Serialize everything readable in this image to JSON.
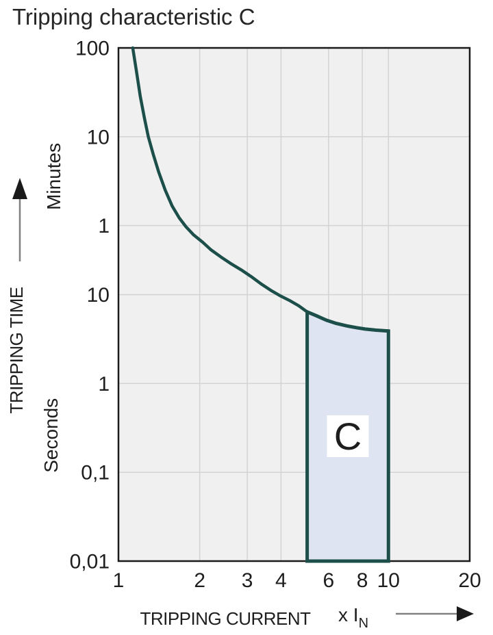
{
  "page": {
    "title": "Tripping characteristic C"
  },
  "colors": {
    "curve": "#1d4f4a",
    "region_fill": "#dfe4f3",
    "region_border": "#1d4f4a",
    "plot_background": "#f0f0f0",
    "grid": "#d3d3d3",
    "plot_border": "#1a1a1a",
    "text": "#1e1e1e",
    "arrow_line": "#808080",
    "arrow_head": "#1a1a1a",
    "label_box": "#ffffff"
  },
  "chart_data": {
    "type": "line",
    "title": "Tripping characteristic C",
    "grid": true,
    "x_axis": {
      "title": "TRIPPING CURRENT",
      "unit_label": "x I",
      "unit_subscript": "N",
      "scale": "log",
      "min": 1,
      "max": 20,
      "ticks": [
        {
          "label": "1",
          "v": 1,
          "grid": false
        },
        {
          "label": "2",
          "v": 2,
          "grid": true
        },
        {
          "label": "3",
          "v": 3,
          "grid": true
        },
        {
          "label": "4",
          "v": 4,
          "grid": true
        },
        {
          "label": "6",
          "v": 6,
          "grid": true
        },
        {
          "label": "8",
          "v": 8,
          "grid": true
        },
        {
          "label": "10",
          "v": 10,
          "grid": true
        },
        {
          "label": "20",
          "v": 20,
          "grid": false
        }
      ]
    },
    "y_axis": {
      "title": "TRIPPING TIME",
      "scale": "log",
      "min_seconds": 0.01,
      "max_seconds": 6000,
      "unit_labels": [
        {
          "label": "Minutes",
          "center_t": 214
        },
        {
          "label": "Seconds",
          "center_t": 0.26
        }
      ],
      "ticks": [
        {
          "label": "100",
          "t": 6000,
          "grid": false
        },
        {
          "label": "10",
          "t": 600,
          "grid": true
        },
        {
          "label": "1",
          "t": 60,
          "grid": true
        },
        {
          "label": "10",
          "t": 10,
          "grid": true
        },
        {
          "label": "1",
          "t": 1,
          "grid": true
        },
        {
          "label": "0,1",
          "t": 0.1,
          "grid": true
        },
        {
          "label": "0,01",
          "t": 0.01,
          "grid": false
        }
      ]
    },
    "series": [
      {
        "name": "C tripping curve",
        "points": [
          [
            1.13,
            6000
          ],
          [
            1.165,
            3300
          ],
          [
            1.205,
            1700
          ],
          [
            1.25,
            950
          ],
          [
            1.29,
            600
          ],
          [
            1.345,
            380
          ],
          [
            1.41,
            240
          ],
          [
            1.49,
            150
          ],
          [
            1.58,
            100
          ],
          [
            1.68,
            73
          ],
          [
            1.78,
            58
          ],
          [
            1.9,
            47
          ],
          [
            2.05,
            39
          ],
          [
            2.2,
            32
          ],
          [
            2.4,
            26.5
          ],
          [
            2.6,
            22.5
          ],
          [
            2.85,
            19
          ],
          [
            3.1,
            16
          ],
          [
            3.4,
            13
          ],
          [
            3.7,
            11
          ],
          [
            4.0,
            9.6
          ],
          [
            4.3,
            8.6
          ],
          [
            4.65,
            7.5
          ],
          [
            5.0,
            6.4
          ],
          [
            5.4,
            5.8
          ],
          [
            5.9,
            5.15
          ],
          [
            6.4,
            4.75
          ],
          [
            7.0,
            4.45
          ],
          [
            7.6,
            4.25
          ],
          [
            8.2,
            4.1
          ],
          [
            9.0,
            3.98
          ],
          [
            10.0,
            3.9
          ]
        ]
      }
    ],
    "region": {
      "label": "C",
      "x_min": 5,
      "x_max": 10,
      "bottom_t": 0.01
    }
  }
}
